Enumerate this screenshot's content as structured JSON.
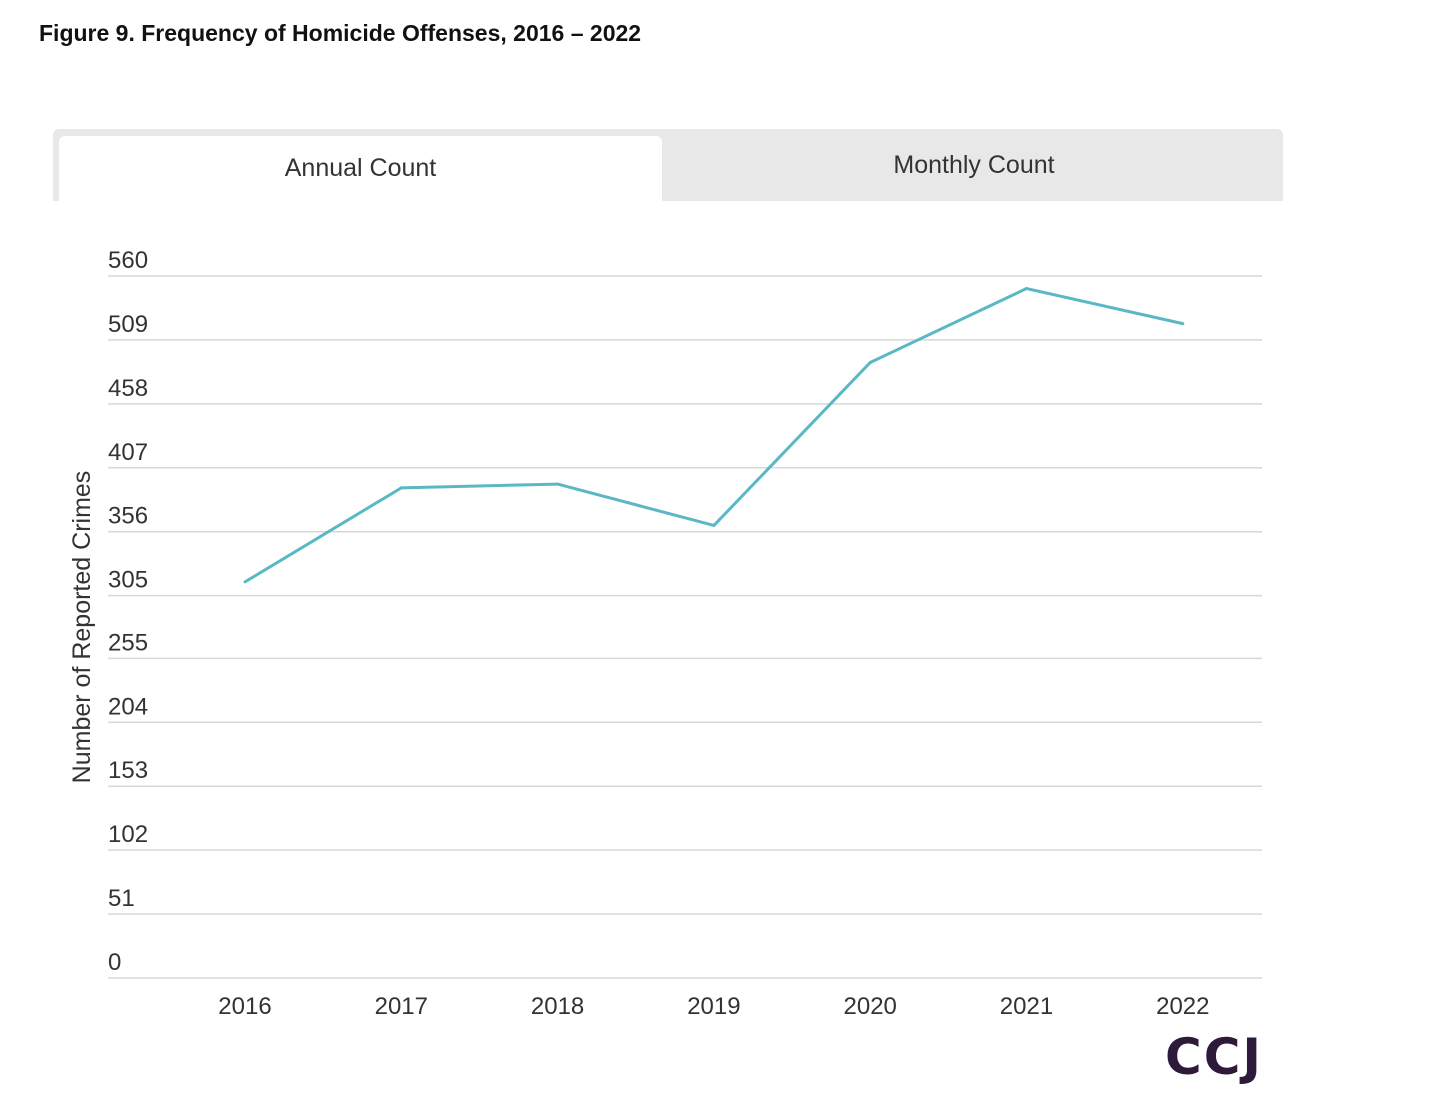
{
  "title": "Figure 9. Frequency of Homicide Offenses, 2016 – 2022",
  "tabs": [
    {
      "label": "Annual Count",
      "active": true
    },
    {
      "label": "Monthly Count",
      "active": false
    }
  ],
  "logo": "CCJ",
  "chart_data": {
    "type": "line",
    "title": "Figure 9. Frequency of Homicide Offenses, 2016 – 2022",
    "xlabel": "",
    "ylabel": "Number of Reported Crimes",
    "categories": [
      "2016",
      "2017",
      "2018",
      "2019",
      "2020",
      "2021",
      "2022"
    ],
    "series": [
      {
        "name": "Homicide Offenses",
        "values": [
          316,
          391,
          394,
          361,
          491,
          550,
          522
        ],
        "color": "#5ab8c4"
      }
    ],
    "yticks": [
      0,
      51,
      102,
      153,
      204,
      255,
      305,
      356,
      407,
      458,
      509,
      560
    ],
    "ylim": [
      0,
      560
    ],
    "grid": true
  }
}
